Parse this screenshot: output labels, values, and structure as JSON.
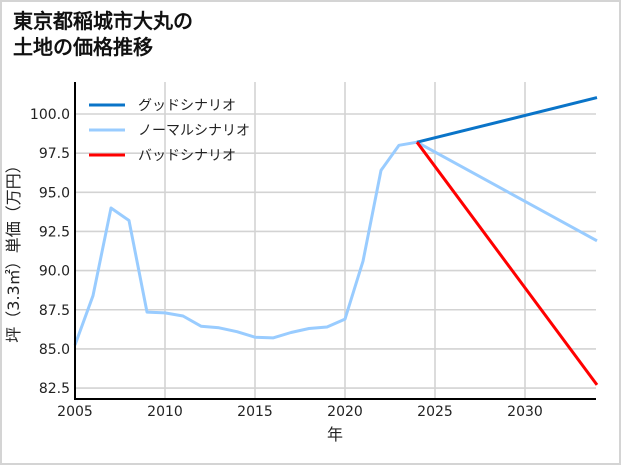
{
  "title": {
    "line1": "東京都稲城市大丸の",
    "line2": "土地の価格推移"
  },
  "chart_data": {
    "type": "line",
    "title": "東京都稲城市大丸の土地の価格推移",
    "xlabel": "年",
    "ylabel": "坪（3.3㎡）単価（万円）",
    "xlim": [
      2005,
      2034
    ],
    "ylim": [
      82.0,
      102.0
    ],
    "xticks": [
      2005,
      2010,
      2015,
      2020,
      2025,
      2030
    ],
    "yticks": [
      82.5,
      85.0,
      87.5,
      90.0,
      92.5,
      95.0,
      97.5,
      100.0
    ],
    "ytick_labels": [
      "82.5",
      "85.0",
      "87.5",
      "90.0",
      "92.5",
      "95.0",
      "97.5",
      "100.0"
    ],
    "xtick_labels": [
      "2005",
      "2010",
      "2015",
      "2020",
      "2025",
      "2030"
    ],
    "grid": true,
    "legend_position": "upper left",
    "series": [
      {
        "name": "グッドシナリオ",
        "color": "#0a74c8",
        "x": [
          2024,
          2034
        ],
        "values": [
          98.2,
          101.05
        ]
      },
      {
        "name": "ノーマルシナリオ",
        "color": "#99ccff",
        "x": [
          2005,
          2006,
          2007,
          2008,
          2009,
          2010,
          2011,
          2012,
          2013,
          2014,
          2015,
          2016,
          2017,
          2018,
          2019,
          2020,
          2021,
          2022,
          2023,
          2024,
          2034
        ],
        "values": [
          85.25,
          88.4,
          94.0,
          93.2,
          87.35,
          87.3,
          87.1,
          86.45,
          86.35,
          86.1,
          85.75,
          85.7,
          86.05,
          86.3,
          86.4,
          86.9,
          90.6,
          96.4,
          98.0,
          98.2,
          91.9
        ]
      },
      {
        "name": "バッドシナリオ",
        "color": "#ff0000",
        "x": [
          2024,
          2034
        ],
        "values": [
          98.2,
          82.7
        ]
      }
    ]
  }
}
